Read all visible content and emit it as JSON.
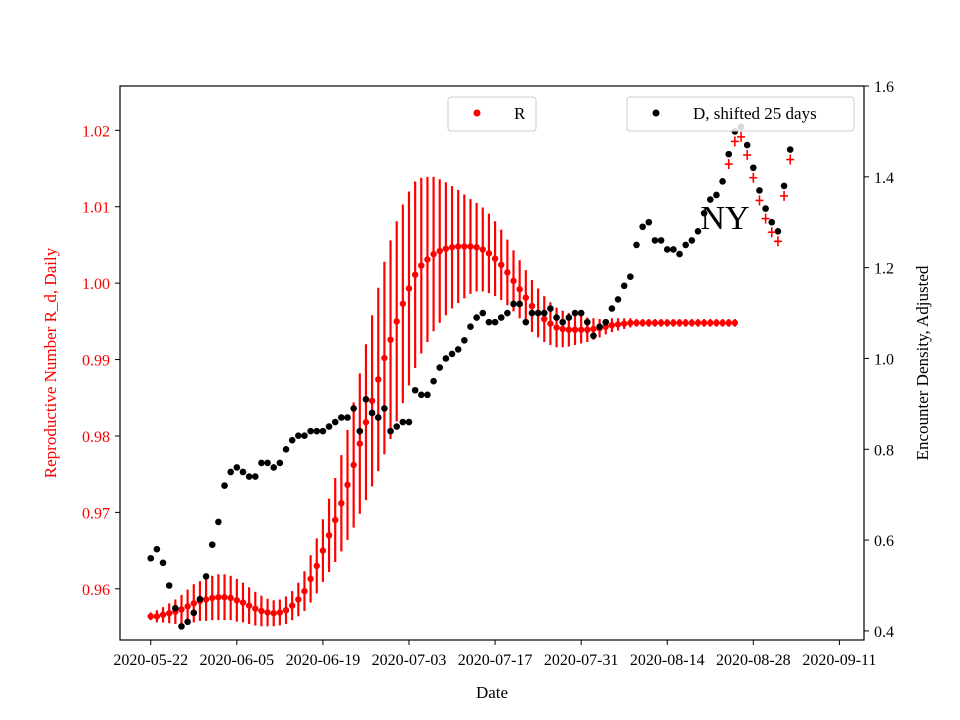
{
  "chart_data": {
    "type": "scatter",
    "annotation": "NY",
    "xlabel": "Date",
    "ylabel_left": "Reproductive Number R_d, Daily",
    "ylabel_right": "Encounter Density, Adjusted",
    "x_tick_labels": [
      "2020-05-22",
      "2020-06-05",
      "2020-06-19",
      "2020-07-03",
      "2020-07-17",
      "2020-07-31",
      "2020-08-14",
      "2020-08-28",
      "2020-09-11"
    ],
    "y_left_ticks": [
      0.96,
      0.97,
      0.98,
      0.99,
      1.0,
      1.01,
      1.02
    ],
    "y_left_tick_labels": [
      "0.96",
      "0.97",
      "0.98",
      "0.99",
      "1.00",
      "1.01",
      "1.02"
    ],
    "y_left_lim": [
      0.9533,
      1.0258
    ],
    "y_right_ticks": [
      0.4,
      0.6,
      0.8,
      1.0,
      1.2,
      1.4,
      1.6
    ],
    "y_right_tick_labels": [
      "0.4",
      "0.6",
      "0.8",
      "1.0",
      "1.2",
      "1.4",
      "1.6"
    ],
    "y_right_lim": [
      0.38,
      1.6
    ],
    "x_range": [
      "2020-05-17",
      "2020-09-15"
    ],
    "legend_left": {
      "label": "R",
      "placement": "top-center"
    },
    "legend_right": {
      "label": "D, shifted 25 days",
      "placement": "top-right"
    },
    "series": [
      {
        "name": "R",
        "axis": "left",
        "color": "#ff0000",
        "x_start": "2020-05-22",
        "x_step_days": 1,
        "y": [
          0.9564,
          0.9564,
          0.9566,
          0.9568,
          0.957,
          0.9573,
          0.9577,
          0.9581,
          0.9584,
          0.9586,
          0.9588,
          0.9589,
          0.9589,
          0.9588,
          0.9585,
          0.9582,
          0.9578,
          0.9574,
          0.9571,
          0.9569,
          0.9568,
          0.9569,
          0.9572,
          0.9578,
          0.9586,
          0.9597,
          0.9613,
          0.963,
          0.965,
          0.967,
          0.969,
          0.9712,
          0.9736,
          0.9762,
          0.979,
          0.9818,
          0.9846,
          0.9874,
          0.9902,
          0.9926,
          0.995,
          0.9973,
          0.9993,
          1.0011,
          1.0023,
          1.0031,
          1.0038,
          1.0042,
          1.0045,
          1.0047,
          1.0048,
          1.0048,
          1.0048,
          1.0047,
          1.0044,
          1.0039,
          1.0032,
          1.0024,
          1.0014,
          1.0003,
          0.9992,
          0.9981,
          0.997,
          0.9961,
          0.9953,
          0.9947,
          0.9942,
          0.994,
          0.9939,
          0.9939,
          0.9939,
          0.9939,
          0.994,
          0.9941,
          0.9943,
          0.9945,
          0.9946,
          0.9947,
          0.9948,
          0.9948,
          0.9948,
          0.9948,
          0.9948,
          0.9948,
          0.9948,
          0.9948,
          0.9948,
          0.9948,
          0.9948,
          0.9948,
          0.9948,
          0.9948,
          0.9948,
          0.9948,
          0.9948,
          0.9948
        ],
        "error": [
          0.0005,
          0.0008,
          0.001,
          0.0013,
          0.0016,
          0.0019,
          0.0022,
          0.0025,
          0.0026,
          0.0028,
          0.0029,
          0.003,
          0.003,
          0.0029,
          0.0028,
          0.0026,
          0.0024,
          0.0022,
          0.002,
          0.0018,
          0.0017,
          0.0017,
          0.0018,
          0.0019,
          0.0022,
          0.0026,
          0.0031,
          0.0036,
          0.0041,
          0.0048,
          0.0055,
          0.0063,
          0.0072,
          0.0082,
          0.0092,
          0.0102,
          0.0112,
          0.012,
          0.0126,
          0.013,
          0.0131,
          0.013,
          0.0127,
          0.0122,
          0.0115,
          0.0108,
          0.0101,
          0.0094,
          0.0087,
          0.008,
          0.0074,
          0.0068,
          0.0062,
          0.0058,
          0.0055,
          0.0052,
          0.0049,
          0.0046,
          0.0043,
          0.004,
          0.0038,
          0.0036,
          0.0034,
          0.0032,
          0.003,
          0.0028,
          0.0026,
          0.0024,
          0.0022,
          0.002,
          0.0018,
          0.0016,
          0.0014,
          0.0012,
          0.001,
          0.0009,
          0.0008,
          0.0007,
          0.0006,
          0.0005,
          0.0005,
          0.0005,
          0.0005,
          0.0005,
          0.0005,
          0.0005,
          0.0005,
          0.0005,
          0.0005,
          0.0005,
          0.0005,
          0.0005,
          0.0005,
          0.0005,
          0.0005,
          0.0005
        ]
      },
      {
        "name": "D, shifted 25 days",
        "axis": "right",
        "color": "#000000",
        "x_start": "2020-05-22",
        "x_step_days": 1,
        "y": [
          0.56,
          0.58,
          0.55,
          0.5,
          0.45,
          0.41,
          0.42,
          0.44,
          0.47,
          0.52,
          0.59,
          0.64,
          0.72,
          0.75,
          0.76,
          0.75,
          0.74,
          0.74,
          0.77,
          0.77,
          0.76,
          0.77,
          0.8,
          0.82,
          0.83,
          0.83,
          0.84,
          0.84,
          0.84,
          0.85,
          0.86,
          0.87,
          0.87,
          0.89,
          0.84,
          0.91,
          0.88,
          0.87,
          0.89,
          0.84,
          0.85,
          0.86,
          0.86,
          0.93,
          0.92,
          0.92,
          0.95,
          0.98,
          1.0,
          1.01,
          1.02,
          1.04,
          1.07,
          1.09,
          1.1,
          1.08,
          1.08,
          1.09,
          1.1,
          1.12,
          1.12,
          1.08,
          1.1,
          1.1,
          1.1,
          1.11,
          1.09,
          1.08,
          1.09,
          1.1,
          1.1,
          1.08,
          1.05,
          1.07,
          1.08,
          1.11,
          1.13,
          1.16,
          1.18,
          1.25,
          1.29,
          1.3,
          1.26,
          1.26,
          1.24,
          1.24,
          1.23,
          1.25,
          1.26,
          1.28,
          1.32,
          1.35,
          1.36,
          1.39,
          1.45,
          1.5,
          1.51,
          1.47,
          1.42,
          1.37,
          1.33,
          1.3,
          1.28,
          1.38,
          1.46
        ]
      }
    ]
  }
}
